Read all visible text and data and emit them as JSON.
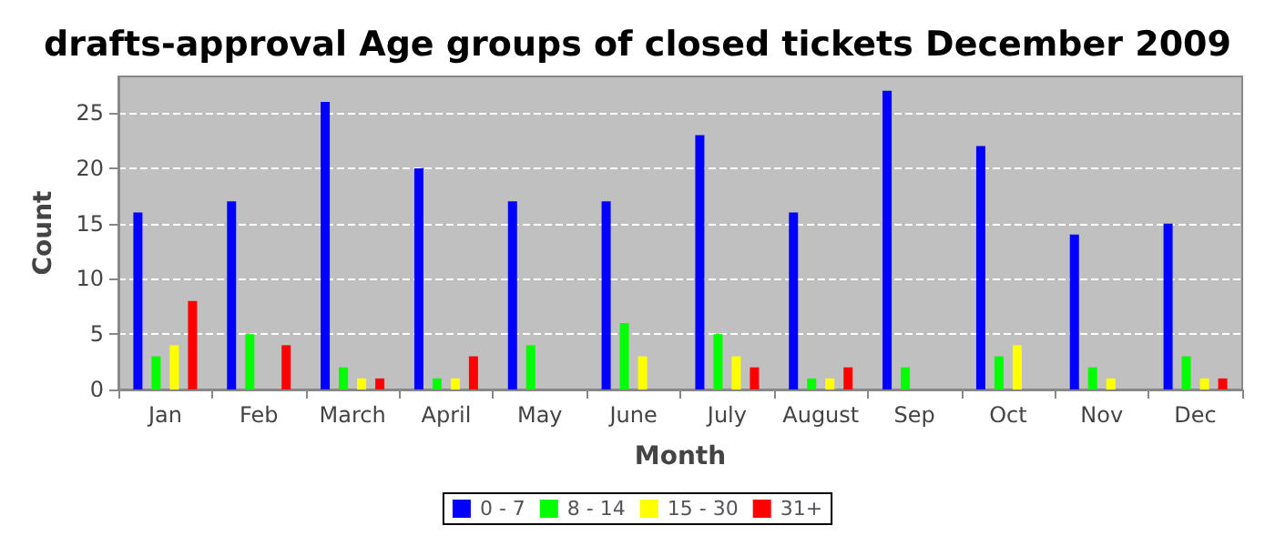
{
  "chart_data": {
    "type": "bar",
    "title": "drafts-approval Age groups of closed tickets December 2009",
    "xlabel": "Month",
    "ylabel": "Count",
    "categories": [
      "Jan",
      "Feb",
      "March",
      "April",
      "May",
      "June",
      "July",
      "August",
      "Sep",
      "Oct",
      "Nov",
      "Dec"
    ],
    "series": [
      {
        "name": "0 - 7",
        "color": "#0000ff",
        "values": [
          16,
          17,
          26,
          20,
          17,
          17,
          23,
          16,
          27,
          22,
          14,
          15
        ]
      },
      {
        "name": "8 - 14",
        "color": "#00ff00",
        "values": [
          3,
          5,
          2,
          1,
          4,
          6,
          5,
          1,
          2,
          3,
          2,
          3
        ]
      },
      {
        "name": "15 - 30",
        "color": "#ffff00",
        "values": [
          4,
          0,
          1,
          1,
          0,
          3,
          3,
          1,
          0,
          4,
          1,
          1
        ]
      },
      {
        "name": "31+",
        "color": "#ff0000",
        "values": [
          8,
          4,
          1,
          3,
          0,
          0,
          2,
          2,
          0,
          0,
          0,
          1
        ]
      }
    ],
    "ylim": [
      0,
      28.3
    ],
    "yticks": [
      0,
      5,
      10,
      15,
      20,
      25
    ],
    "grid": "y",
    "legend": "bottom"
  }
}
